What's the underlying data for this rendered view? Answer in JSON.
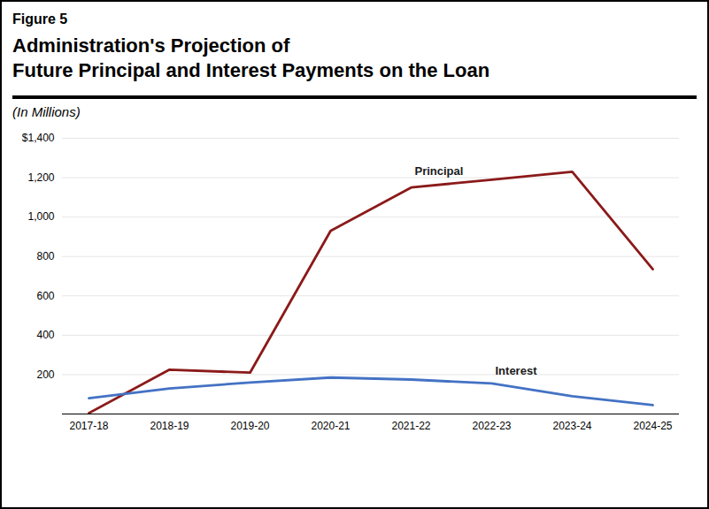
{
  "chart_data": {
    "type": "line",
    "annotations": [
      "Figure 5"
    ],
    "title": "Administration's Projection of\nFuture Principal and Interest Payments on the Loan",
    "subtitle": "(In Millions)",
    "categories": [
      "2017-18",
      "2018-19",
      "2019-20",
      "2020-21",
      "2021-22",
      "2022-23",
      "2023-24",
      "2024-25"
    ],
    "series": [
      {
        "name": "Principal",
        "color": "#8B1A1A",
        "values": [
          5,
          225,
          210,
          930,
          1150,
          1190,
          1230,
          735
        ]
      },
      {
        "name": "Interest",
        "color": "#4472C4",
        "values": [
          80,
          130,
          160,
          185,
          175,
          155,
          90,
          45
        ]
      }
    ],
    "ylim": [
      0,
      1400
    ],
    "yticks": [
      {
        "value": 0,
        "label": null
      },
      200,
      400,
      600,
      800,
      {
        "value": 1000,
        "label": "1,000"
      },
      {
        "value": 1200,
        "label": "1,200"
      },
      {
        "value": 1400,
        "label": "$1,400"
      }
    ],
    "grid": true
  }
}
